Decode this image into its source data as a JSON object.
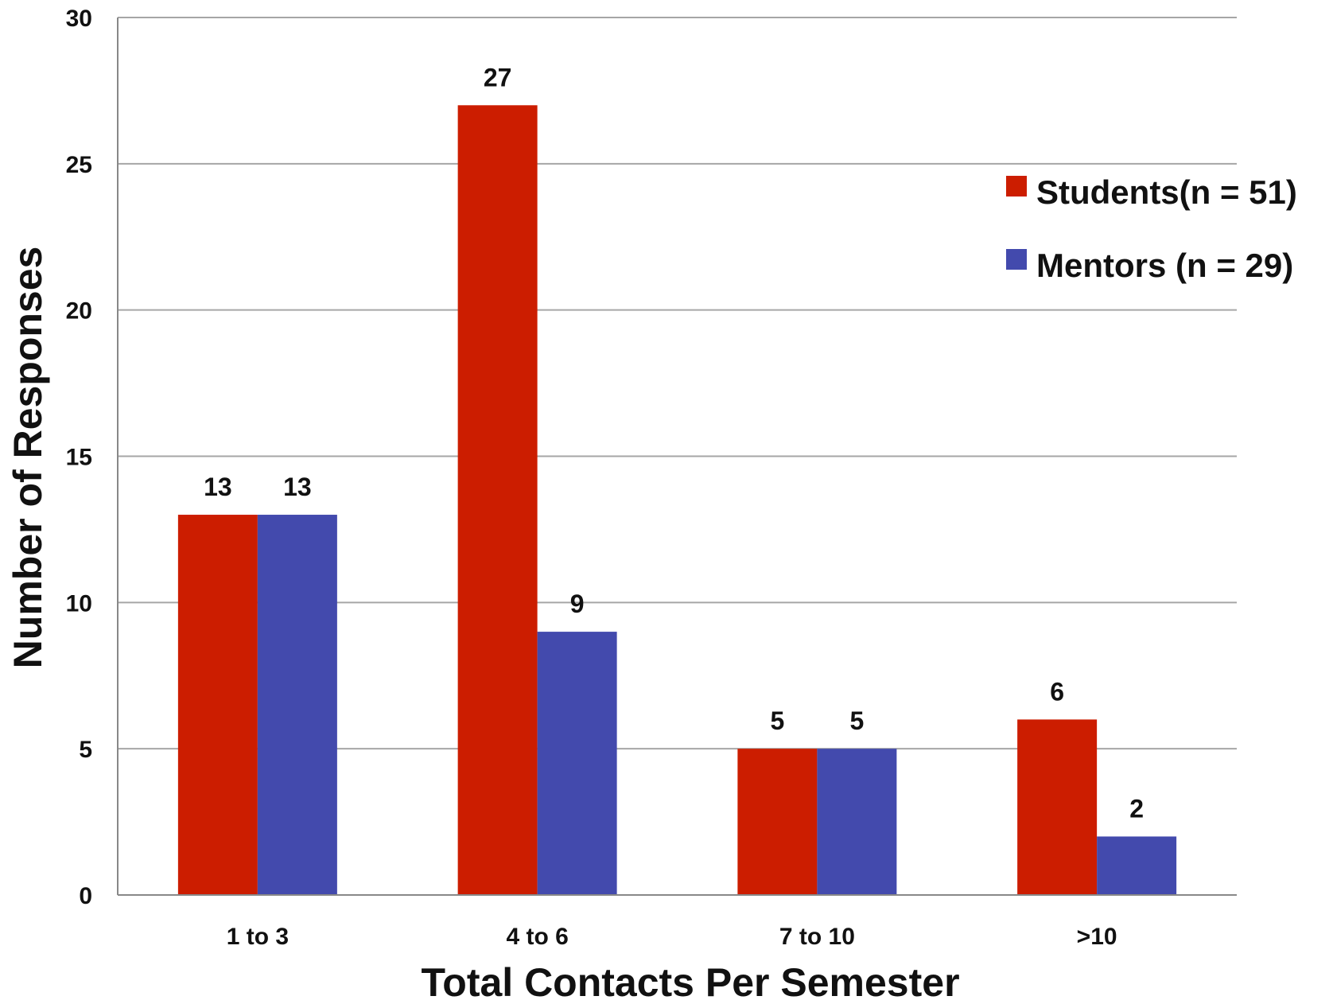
{
  "chart_data": {
    "type": "bar",
    "xlabel": "Total Contacts Per Semester",
    "ylabel": "Number of Responses",
    "categories": [
      "1 to 3",
      "4 to 6",
      "7 to 10",
      ">10"
    ],
    "series": [
      {
        "name": "Students",
        "legend_label": "Students(n = 51)",
        "values": [
          13,
          27,
          5,
          6
        ],
        "color": "#cc1d00"
      },
      {
        "name": "Mentors",
        "legend_label": "Mentors (n = 29)",
        "values": [
          13,
          9,
          5,
          2
        ],
        "color": "#434aad"
      }
    ],
    "ylim": [
      0,
      30
    ],
    "yticks": [
      0,
      5,
      10,
      15,
      20,
      25,
      30
    ],
    "grid": true,
    "legend": "right",
    "data_labels": true
  }
}
